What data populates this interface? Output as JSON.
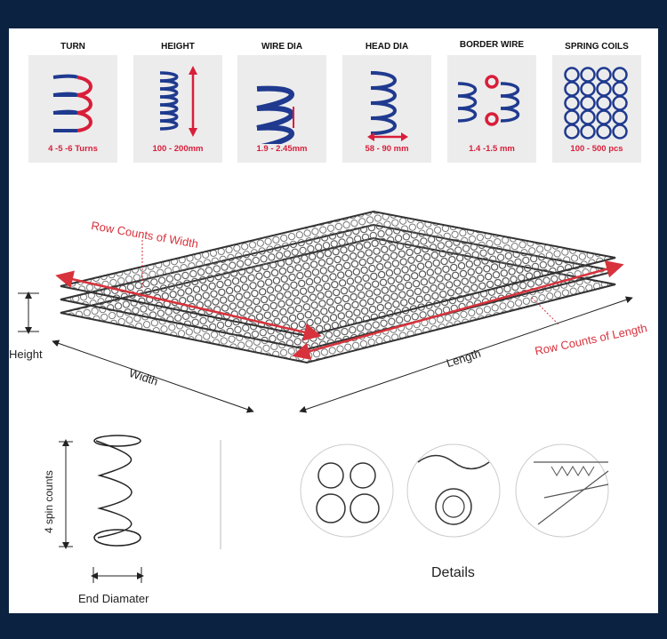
{
  "specs": [
    {
      "title": "TURN",
      "value": "4 -5 -6  Turns",
      "icon": "spring-turn-icon"
    },
    {
      "title": "HEIGHT",
      "value": "100 - 200mm",
      "icon": "spring-height-icon"
    },
    {
      "title": "WIRE DIA",
      "value": "1.9 - 2.45mm",
      "icon": "wire-diameter-icon"
    },
    {
      "title": "HEAD DIA",
      "value": "58  - 90 mm",
      "icon": "head-diameter-icon"
    },
    {
      "title": "BORDER WIRE",
      "value": "1.4  -1.5 mm",
      "icon": "border-wire-icon"
    },
    {
      "title": "SPRING COILS",
      "value": "100 - 500 pcs",
      "icon": "spring-coils-icon"
    }
  ],
  "diagram": {
    "row_counts_width": "Row Counts of Width",
    "row_counts_length": "Row Counts of Length",
    "height": "Height",
    "width": "Width",
    "length": "Length"
  },
  "spring": {
    "spin_counts": "4 spin counts",
    "end_diameter": "End Diamater"
  },
  "details": {
    "label": "Details"
  },
  "colors": {
    "frame": "#0b2340",
    "accent": "#d81e3a",
    "spring_blue": "#1f3a8f",
    "card": "#ececec"
  }
}
